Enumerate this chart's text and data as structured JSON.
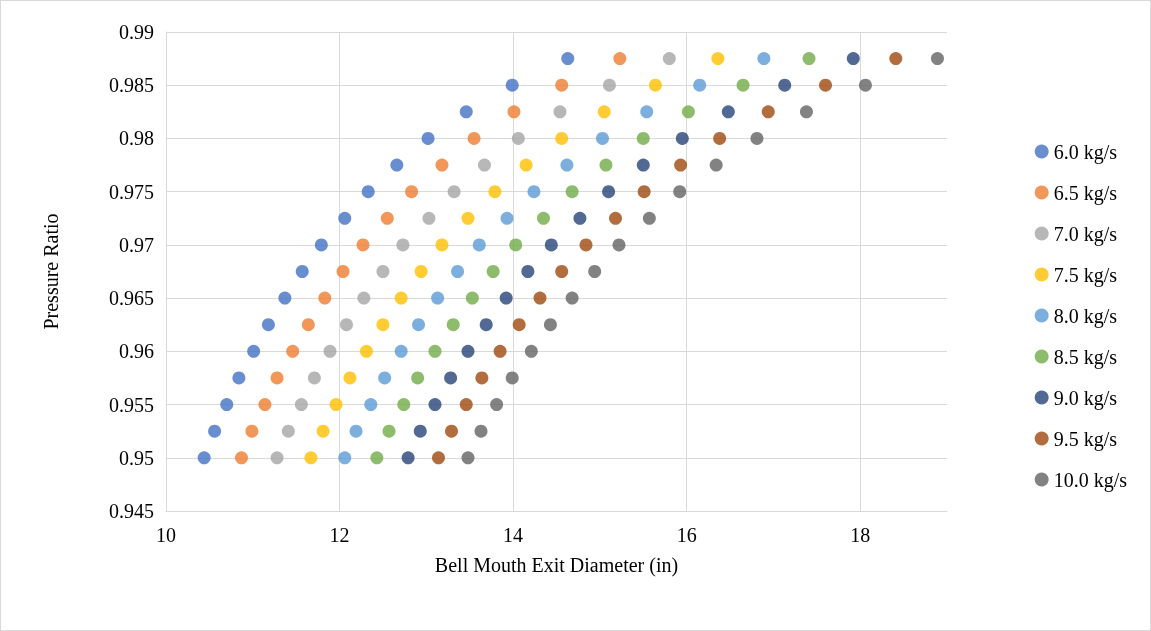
{
  "chart_data": {
    "type": "scatter",
    "xlabel": "Bell Mouth Exit Diameter (in)",
    "ylabel": "Pressure Ratio",
    "xlim": [
      10,
      19
    ],
    "xticks": [
      10,
      12,
      14,
      16,
      18
    ],
    "ylim": [
      0.945,
      0.99
    ],
    "yticks": [
      0.945,
      0.95,
      0.955,
      0.96,
      0.965,
      0.97,
      0.975,
      0.98,
      0.985,
      0.99
    ],
    "grid": true,
    "legend": "right",
    "marker": "circle",
    "series": [
      {
        "name": "6.0 kg/s",
        "color": "#4472c4",
        "x": [
          10.44,
          10.56,
          10.7,
          10.84,
          11.01,
          11.18,
          11.37,
          11.57,
          11.79,
          12.06,
          12.33,
          12.66,
          13.02,
          13.46,
          13.99,
          14.63
        ],
        "values": [
          0.95,
          0.9525,
          0.955,
          0.9575,
          0.96,
          0.9625,
          0.965,
          0.9675,
          0.97,
          0.9725,
          0.975,
          0.9775,
          0.98,
          0.9825,
          0.985,
          0.9875
        ]
      },
      {
        "name": "6.5 kg/s",
        "color": "#ed7d31",
        "x": [
          10.87,
          10.99,
          11.14,
          11.28,
          11.46,
          11.64,
          11.83,
          12.04,
          12.27,
          12.55,
          12.83,
          13.18,
          13.55,
          14.01,
          14.56,
          15.23
        ],
        "values": [
          0.95,
          0.9525,
          0.955,
          0.9575,
          0.96,
          0.9625,
          0.965,
          0.9675,
          0.97,
          0.9725,
          0.975,
          0.9775,
          0.98,
          0.9825,
          0.985,
          0.9875
        ]
      },
      {
        "name": "7.0 kg/s",
        "color": "#a5a5a5",
        "x": [
          11.28,
          11.41,
          11.56,
          11.71,
          11.89,
          12.08,
          12.28,
          12.5,
          12.73,
          13.03,
          13.32,
          13.67,
          14.06,
          14.54,
          15.11,
          15.8
        ],
        "values": [
          0.95,
          0.9525,
          0.955,
          0.9575,
          0.96,
          0.9625,
          0.965,
          0.9675,
          0.97,
          0.9725,
          0.975,
          0.9775,
          0.98,
          0.9825,
          0.985,
          0.9875
        ]
      },
      {
        "name": "7.5 kg/s",
        "color": "#ffc000",
        "x": [
          11.67,
          11.81,
          11.96,
          12.12,
          12.31,
          12.5,
          12.71,
          12.94,
          13.18,
          13.48,
          13.79,
          14.15,
          14.56,
          15.05,
          15.64,
          16.36
        ],
        "values": [
          0.95,
          0.9525,
          0.955,
          0.9575,
          0.96,
          0.9625,
          0.965,
          0.9675,
          0.97,
          0.9725,
          0.975,
          0.9775,
          0.98,
          0.9825,
          0.985,
          0.9875
        ]
      },
      {
        "name": "8.0 kg/s",
        "color": "#5b9bd5",
        "x": [
          12.06,
          12.19,
          12.36,
          12.52,
          12.71,
          12.91,
          13.13,
          13.36,
          13.61,
          13.93,
          14.24,
          14.62,
          15.03,
          15.54,
          16.15,
          16.89
        ],
        "values": [
          0.95,
          0.9525,
          0.955,
          0.9575,
          0.96,
          0.9625,
          0.965,
          0.9675,
          0.97,
          0.9725,
          0.975,
          0.9775,
          0.98,
          0.9825,
          0.985,
          0.9875
        ]
      },
      {
        "name": "8.5 kg/s",
        "color": "#70ad47",
        "x": [
          12.43,
          12.57,
          12.74,
          12.9,
          13.1,
          13.31,
          13.53,
          13.77,
          14.03,
          14.35,
          14.68,
          15.07,
          15.5,
          16.02,
          16.65,
          17.41
        ],
        "values": [
          0.95,
          0.9525,
          0.955,
          0.9575,
          0.96,
          0.9625,
          0.965,
          0.9675,
          0.97,
          0.9725,
          0.975,
          0.9775,
          0.98,
          0.9825,
          0.985,
          0.9875
        ]
      },
      {
        "name": "9.0 kg/s",
        "color": "#264478",
        "x": [
          12.79,
          12.93,
          13.1,
          13.28,
          13.48,
          13.69,
          13.92,
          14.17,
          14.44,
          14.77,
          15.1,
          15.5,
          15.95,
          16.48,
          17.13,
          17.92
        ],
        "values": [
          0.95,
          0.9525,
          0.955,
          0.9575,
          0.96,
          0.9625,
          0.965,
          0.9675,
          0.97,
          0.9725,
          0.975,
          0.9775,
          0.98,
          0.9825,
          0.985,
          0.9875
        ]
      },
      {
        "name": "9.5 kg/s",
        "color": "#9e480e",
        "x": [
          13.14,
          13.29,
          13.46,
          13.64,
          13.85,
          14.07,
          14.31,
          14.56,
          14.84,
          15.18,
          15.51,
          15.93,
          16.38,
          16.94,
          17.6,
          18.41
        ],
        "values": [
          0.95,
          0.9525,
          0.955,
          0.9575,
          0.96,
          0.9625,
          0.965,
          0.9675,
          0.97,
          0.9725,
          0.975,
          0.9775,
          0.98,
          0.9825,
          0.985,
          0.9875
        ]
      },
      {
        "name": "10.0 kg/s",
        "color": "#636363",
        "x": [
          13.48,
          13.63,
          13.81,
          13.99,
          14.21,
          14.43,
          14.68,
          14.94,
          15.22,
          15.57,
          15.92,
          16.34,
          16.81,
          17.38,
          18.06,
          18.89
        ],
        "values": [
          0.95,
          0.9525,
          0.955,
          0.9575,
          0.96,
          0.9625,
          0.965,
          0.9675,
          0.97,
          0.9725,
          0.975,
          0.9775,
          0.98,
          0.9825,
          0.985,
          0.9875
        ]
      }
    ]
  }
}
